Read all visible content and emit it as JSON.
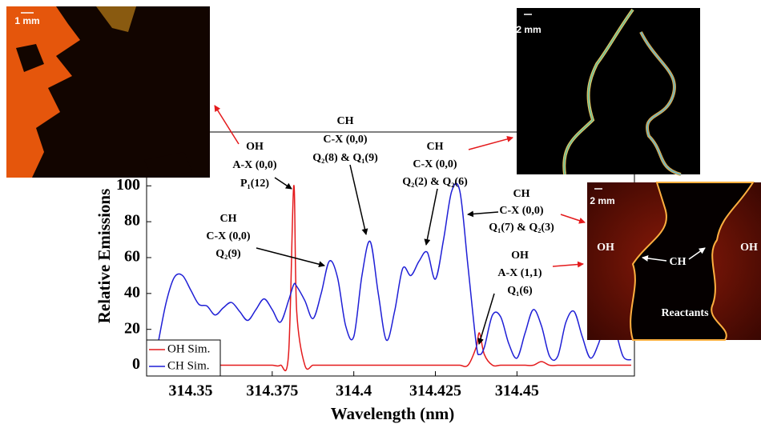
{
  "chart_data": {
    "type": "line",
    "xlabel": "Wavelength (nm)",
    "ylabel": "Relative Emissions",
    "x": [
      314.34,
      314.3425,
      314.345,
      314.3475,
      314.35,
      314.3525,
      314.355,
      314.3575,
      314.36,
      314.3625,
      314.365,
      314.3675,
      314.37,
      314.3725,
      314.375,
      314.3775,
      314.38,
      314.3816,
      314.3825,
      314.385,
      314.3875,
      314.39,
      314.3925,
      314.395,
      314.3975,
      314.4,
      314.4025,
      314.405,
      314.4075,
      314.41,
      314.4125,
      314.415,
      314.4175,
      314.42,
      314.4225,
      314.425,
      314.4275,
      314.43,
      314.4325,
      314.435,
      314.4375,
      314.4385,
      314.44,
      314.4425,
      314.445,
      314.4475,
      314.45,
      314.4525,
      314.455,
      314.4575,
      314.46,
      314.4625,
      314.465,
      314.4675,
      314.47,
      314.4725,
      314.475,
      314.4775,
      314.48,
      314.4825,
      314.485
    ],
    "series": [
      {
        "name": "OH Sim.",
        "color": "#e41a1c",
        "values": [
          0,
          0,
          0,
          0,
          0,
          0,
          0,
          0,
          0,
          0,
          0,
          0,
          0,
          0,
          0,
          0,
          6,
          100,
          30,
          0,
          0,
          0,
          0,
          0,
          0,
          0,
          0,
          0,
          0,
          0,
          0,
          0,
          0,
          0,
          0,
          0,
          0,
          0,
          0,
          0,
          10,
          18,
          6,
          0,
          0,
          0,
          0,
          0,
          0,
          2,
          0,
          0,
          0,
          0,
          0,
          0,
          0,
          0,
          0,
          0,
          0
        ]
      },
      {
        "name": "CH Sim.",
        "color": "#1f1fd6",
        "values": [
          12,
          35,
          49,
          50,
          42,
          34,
          33,
          28,
          32,
          35,
          30,
          25,
          31,
          37,
          31,
          24,
          36,
          45,
          44,
          36,
          26,
          40,
          58,
          49,
          22,
          16,
          50,
          69,
          40,
          14,
          30,
          54,
          50,
          58,
          63,
          48,
          70,
          97,
          97,
          55,
          12,
          6,
          10,
          28,
          27,
          12,
          4,
          18,
          31,
          22,
          5,
          5,
          24,
          30,
          16,
          4,
          12,
          26,
          20,
          5,
          3
        ]
      }
    ],
    "xlim": [
      314.3365,
      314.486
    ],
    "ylim": [
      -6,
      130
    ],
    "xticks": [
      314.35,
      314.375,
      314.4,
      314.425,
      314.45
    ],
    "yticks": [
      0,
      20,
      40,
      60,
      80,
      100
    ],
    "legend": "lower left",
    "annotations": [
      {
        "lines": [
          "OH",
          "A-X (0,0)",
          "P₁(12)"
        ]
      },
      {
        "lines": [
          "CH",
          "C-X (0,0)",
          "Q₂(8) & Q₁(9)"
        ]
      },
      {
        "lines": [
          "CH",
          "C-X (0,0)",
          "Q₂(2) & Q₂(6)"
        ]
      },
      {
        "lines": [
          "CH",
          "C-X (0,0)",
          "Q₁(7) & Q₂(3)"
        ]
      },
      {
        "lines": [
          "OH",
          "A-X (1,1)",
          "Q₁(6)"
        ]
      },
      {
        "lines": [
          "CH",
          "C-X (0,0)",
          "Q₂(9)"
        ]
      }
    ],
    "insets": [
      {
        "scale": "1 mm"
      },
      {
        "scale": "2 mm"
      },
      {
        "scale": "2 mm",
        "labels": [
          "OH",
          "CH",
          "OH",
          "Reactants"
        ]
      }
    ]
  }
}
